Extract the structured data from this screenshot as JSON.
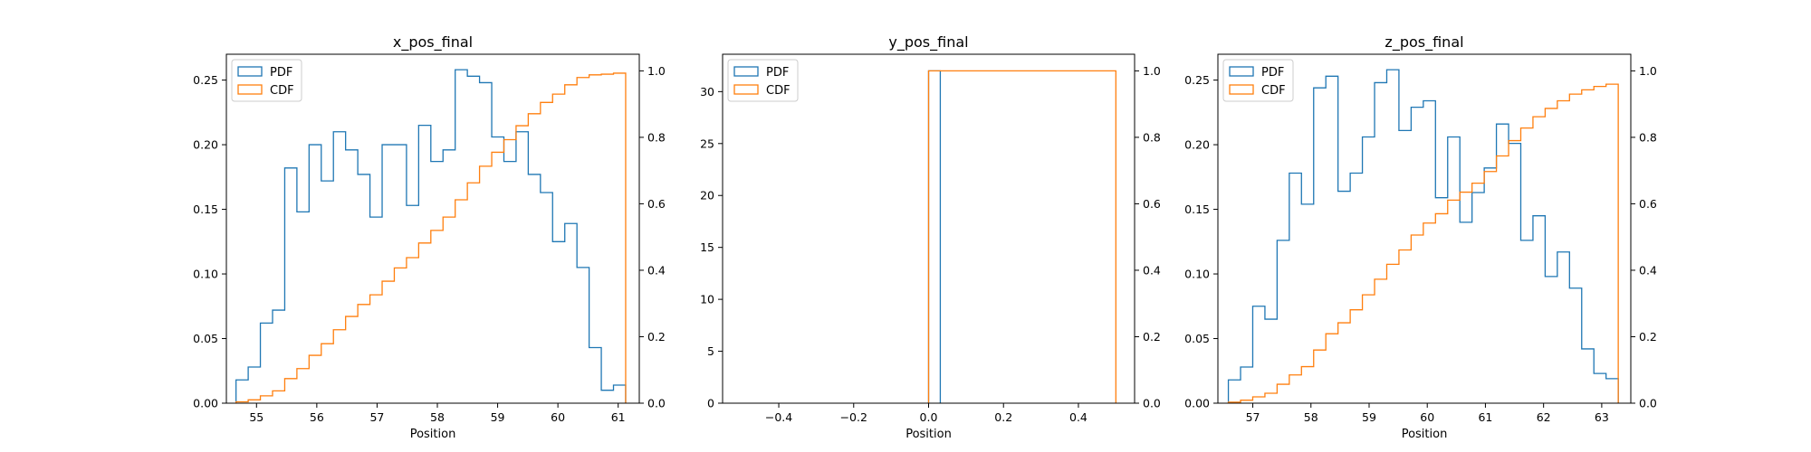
{
  "colors": {
    "pdf": "#1f77b4",
    "cdf": "#ff7f0e"
  },
  "chart_data": [
    {
      "type": "histogram-step",
      "title": "x_pos_final",
      "xlabel": "Position",
      "xlim": [
        54.5,
        61.35
      ],
      "ylim_left": [
        0,
        0.27
      ],
      "ylim_right": [
        0,
        1.05
      ],
      "xticks": [
        55,
        56,
        57,
        58,
        59,
        60,
        61
      ],
      "yticks_left": [
        0,
        0.05,
        0.1,
        0.15,
        0.2,
        0.25
      ],
      "yticks_right": [
        0,
        0.2,
        0.4,
        0.6,
        0.8,
        1.0
      ],
      "legend": {
        "entries": [
          "PDF",
          "CDF"
        ],
        "position": "upper-left"
      },
      "series": [
        {
          "name": "PDF",
          "axis": "left",
          "bin_start": 54.66,
          "bin_width": 0.202,
          "values": [
            0.018,
            0.028,
            0.062,
            0.072,
            0.182,
            0.148,
            0.2,
            0.172,
            0.21,
            0.196,
            0.177,
            0.144,
            0.2,
            0.2,
            0.153,
            0.215,
            0.187,
            0.196,
            0.258,
            0.253,
            0.248,
            0.206,
            0.187,
            0.21,
            0.177,
            0.163,
            0.125,
            0.139,
            0.105,
            0.043,
            0.01,
            0.014
          ]
        },
        {
          "name": "CDF",
          "axis": "right",
          "bin_start": 54.66,
          "bin_width": 0.202,
          "values": [
            0.004,
            0.01,
            0.022,
            0.037,
            0.074,
            0.104,
            0.144,
            0.179,
            0.221,
            0.261,
            0.297,
            0.326,
            0.367,
            0.407,
            0.438,
            0.482,
            0.52,
            0.56,
            0.612,
            0.663,
            0.713,
            0.755,
            0.793,
            0.835,
            0.871,
            0.905,
            0.93,
            0.958,
            0.98,
            0.988,
            0.99,
            0.993
          ]
        }
      ]
    },
    {
      "type": "histogram-step",
      "title": "y_pos_final",
      "xlabel": "Position",
      "xlim": [
        -0.55,
        0.55
      ],
      "ylim_left": [
        0,
        33.6
      ],
      "ylim_right": [
        0,
        1.05
      ],
      "xticks": [
        -0.4,
        -0.2,
        0.0,
        0.2,
        0.4
      ],
      "yticks_left": [
        0,
        5,
        10,
        15,
        20,
        25,
        30
      ],
      "yticks_right": [
        0,
        0.2,
        0.4,
        0.6,
        0.8,
        1.0
      ],
      "legend": {
        "entries": [
          "PDF",
          "CDF"
        ],
        "position": "upper-left"
      },
      "series": [
        {
          "name": "PDF",
          "axis": "left",
          "bin_start": 0.0,
          "bin_width": 0.03125,
          "values": [
            32
          ]
        },
        {
          "name": "CDF",
          "axis": "right",
          "bin_start": 0.0,
          "bin_width": 0.5,
          "values": [
            1.0
          ]
        }
      ]
    },
    {
      "type": "histogram-step",
      "title": "z_pos_final",
      "xlabel": "Position",
      "xlim": [
        56.4,
        63.5
      ],
      "ylim_left": [
        0,
        0.27
      ],
      "ylim_right": [
        0,
        1.05
      ],
      "xticks": [
        57,
        58,
        59,
        60,
        61,
        62,
        63
      ],
      "yticks_left": [
        0,
        0.05,
        0.1,
        0.15,
        0.2,
        0.25
      ],
      "yticks_right": [
        0,
        0.2,
        0.4,
        0.6,
        0.8,
        1.0
      ],
      "legend": {
        "entries": [
          "PDF",
          "CDF"
        ],
        "position": "upper-left"
      },
      "series": [
        {
          "name": "PDF",
          "axis": "left",
          "bin_start": 56.58,
          "bin_width": 0.2095,
          "values": [
            0.018,
            0.028,
            0.075,
            0.065,
            0.126,
            0.178,
            0.154,
            0.244,
            0.253,
            0.164,
            0.178,
            0.206,
            0.248,
            0.258,
            0.211,
            0.229,
            0.234,
            0.159,
            0.206,
            0.14,
            0.163,
            0.182,
            0.216,
            0.201,
            0.126,
            0.145,
            0.098,
            0.117,
            0.089,
            0.042,
            0.023,
            0.019
          ]
        },
        {
          "name": "CDF",
          "axis": "right",
          "bin_start": 56.58,
          "bin_width": 0.2095,
          "values": [
            0.003,
            0.009,
            0.019,
            0.03,
            0.057,
            0.085,
            0.11,
            0.16,
            0.209,
            0.242,
            0.281,
            0.326,
            0.373,
            0.418,
            0.461,
            0.506,
            0.542,
            0.57,
            0.611,
            0.635,
            0.662,
            0.697,
            0.744,
            0.79,
            0.828,
            0.862,
            0.887,
            0.91,
            0.93,
            0.943,
            0.953,
            0.96
          ]
        }
      ]
    }
  ]
}
